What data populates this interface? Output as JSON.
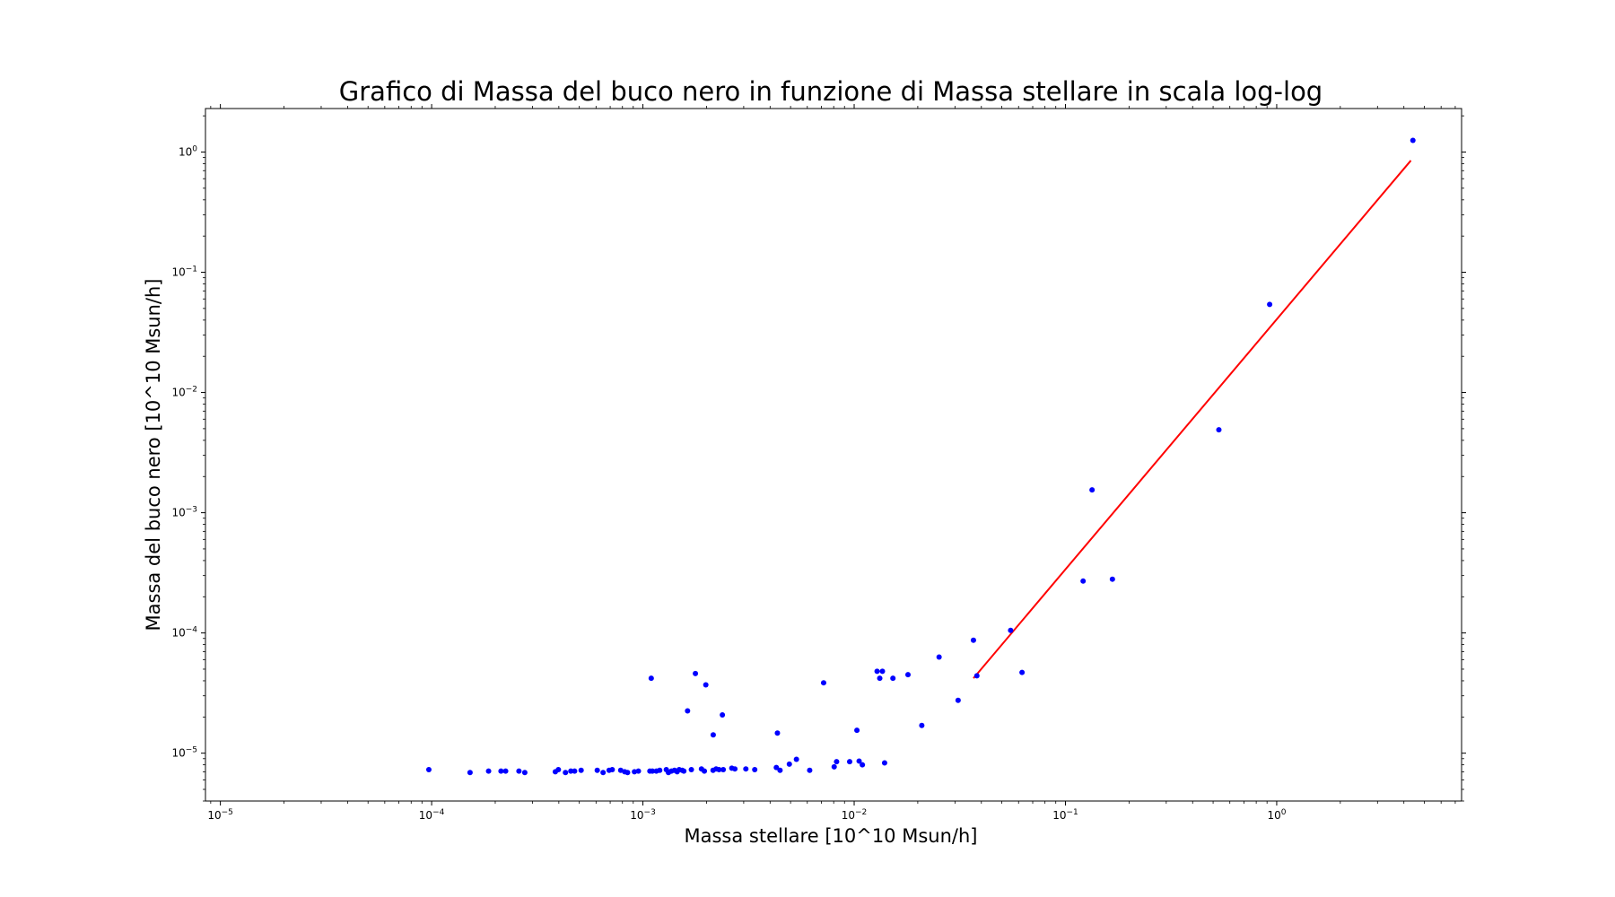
{
  "chart_data": {
    "type": "scatter",
    "title": "Grafico di Massa del buco nero in funzione di Massa stellare in scala log-log",
    "xlabel": "Massa stellare [10^10 Msun/h]",
    "ylabel": "Massa del buco nero [10^10 Msun/h]",
    "xscale": "log",
    "yscale": "log",
    "xlim": [
      8.5e-06,
      7.5
    ],
    "ylim": [
      4e-06,
      2.3
    ],
    "grid": false,
    "x_ticks": [
      {
        "base": "10",
        "exp": "−5",
        "value": 1e-05
      },
      {
        "base": "10",
        "exp": "−4",
        "value": 0.0001
      },
      {
        "base": "10",
        "exp": "−3",
        "value": 0.001
      },
      {
        "base": "10",
        "exp": "−2",
        "value": 0.01
      },
      {
        "base": "10",
        "exp": "−1",
        "value": 0.1
      },
      {
        "base": "10",
        "exp": "0",
        "value": 1
      }
    ],
    "y_ticks": [
      {
        "base": "10",
        "exp": "−5",
        "value": 1e-05
      },
      {
        "base": "10",
        "exp": "−4",
        "value": 0.0001
      },
      {
        "base": "10",
        "exp": "−3",
        "value": 0.001
      },
      {
        "base": "10",
        "exp": "−2",
        "value": 0.01
      },
      {
        "base": "10",
        "exp": "−1",
        "value": 0.1
      },
      {
        "base": "10",
        "exp": "0",
        "value": 1
      }
    ],
    "series": [
      {
        "kind": "scatter",
        "color": "#0000ff",
        "points": [
          [
            9.7e-05,
            7.3e-06
          ],
          [
            0.000152,
            6.9e-06
          ],
          [
            0.000186,
            7.1e-06
          ],
          [
            0.000213,
            7.1e-06
          ],
          [
            0.000224,
            7.1e-06
          ],
          [
            0.000259,
            7.1e-06
          ],
          [
            0.000276,
            6.9e-06
          ],
          [
            0.000385,
            7e-06
          ],
          [
            0.000398,
            7.3e-06
          ],
          [
            0.00043,
            6.9e-06
          ],
          [
            0.000456,
            7.1e-06
          ],
          [
            0.000475,
            7.1e-06
          ],
          [
            0.00051,
            7.2e-06
          ],
          [
            0.000608,
            7.2e-06
          ],
          [
            0.000648,
            6.9e-06
          ],
          [
            0.000692,
            7.2e-06
          ],
          [
            0.000716,
            7.3e-06
          ],
          [
            0.000785,
            7.2e-06
          ],
          [
            0.00082,
            7e-06
          ],
          [
            0.000846,
            6.9e-06
          ],
          [
            0.000912,
            7e-06
          ],
          [
            0.000952,
            7.1e-06
          ],
          [
            0.001079,
            7.1e-06
          ],
          [
            0.001109,
            7.1e-06
          ],
          [
            0.001158,
            7.1e-06
          ],
          [
            0.001201,
            7.2e-06
          ],
          [
            0.001291,
            7.3e-06
          ],
          [
            0.001321,
            6.9e-06
          ],
          [
            0.001365,
            7.1e-06
          ],
          [
            0.001412,
            7.2e-06
          ],
          [
            0.001452,
            7e-06
          ],
          [
            0.001485,
            7.3e-06
          ],
          [
            0.001535,
            7.2e-06
          ],
          [
            0.001562,
            7.1e-06
          ],
          [
            0.001696,
            7.3e-06
          ],
          [
            0.001893,
            7.4e-06
          ],
          [
            0.001954,
            7.1e-06
          ],
          [
            0.002148,
            7.2e-06
          ],
          [
            0.002221,
            7.4e-06
          ],
          [
            0.002293,
            7.3e-06
          ],
          [
            0.002401,
            7.3e-06
          ],
          [
            0.002635,
            7.5e-06
          ],
          [
            0.002725,
            7.4e-06
          ],
          [
            0.003071,
            7.4e-06
          ],
          [
            0.003383,
            7.3e-06
          ],
          [
            0.004282,
            7.6e-06
          ],
          [
            0.004458,
            7.2e-06
          ],
          [
            0.004934,
            8.1e-06
          ],
          [
            0.005329,
            8.9e-06
          ],
          [
            0.006158,
            7.2e-06
          ],
          [
            0.008042,
            7.7e-06
          ],
          [
            0.008255,
            8.5e-06
          ],
          [
            0.00952,
            8.5e-06
          ],
          [
            0.010554,
            8.6e-06
          ],
          [
            0.010933,
            8e-06
          ],
          [
            0.013932,
            8.3e-06
          ],
          [
            0.001095,
            4.2e-05
          ],
          [
            0.001772,
            4.6e-05
          ],
          [
            0.001985,
            3.7e-05
          ],
          [
            0.001627,
            2.25e-05
          ],
          [
            0.002152,
            1.42e-05
          ],
          [
            0.002378,
            2.08e-05
          ],
          [
            0.004332,
            1.47e-05
          ],
          [
            0.007168,
            3.85e-05
          ],
          [
            0.010303,
            1.55e-05
          ],
          [
            0.012837,
            4.8e-05
          ],
          [
            0.013215,
            4.2e-05
          ],
          [
            0.013605,
            4.8e-05
          ],
          [
            0.015256,
            4.2e-05
          ],
          [
            0.017977,
            4.5e-05
          ],
          [
            0.020896,
            1.7e-05
          ],
          [
            0.025232,
            6.3e-05
          ],
          [
            0.031046,
            2.75e-05
          ],
          [
            0.036694,
            8.7e-05
          ],
          [
            0.038093,
            4.4e-05
          ],
          [
            0.055023,
            0.000105
          ],
          [
            0.062307,
            4.7e-05
          ],
          [
            0.121249,
            0.00027
          ],
          [
            0.13366,
            0.00155
          ],
          [
            0.16686,
            0.00028
          ],
          [
            0.532393,
            0.0049
          ],
          [
            0.926041,
            0.054
          ],
          [
            4.4126,
            1.25
          ]
        ]
      },
      {
        "kind": "line",
        "color": "#ff0000",
        "points": [
          [
            0.0367,
            4.2e-05
          ],
          [
            4.3163,
            0.85
          ]
        ]
      }
    ]
  }
}
